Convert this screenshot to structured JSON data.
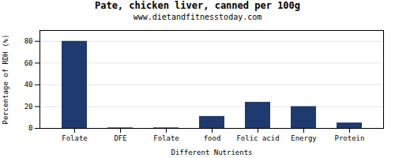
{
  "chart_data": {
    "type": "bar",
    "title": "Pate, chicken liver, canned per 100g",
    "subtitle": "www.dietandfitnesstoday.com",
    "xlabel": "Different Nutrients",
    "ylabel": "Percentage of RDH (%)",
    "categories": [
      "Folate",
      "DFE",
      "Folate",
      "food",
      "Folic acid",
      "Energy",
      "Protein"
    ],
    "values": [
      80,
      0.5,
      0.5,
      11,
      24,
      20,
      5
    ],
    "color": "#1e3a6e",
    "ylim": [
      0,
      90
    ],
    "yticks": [
      0,
      20,
      40,
      60,
      80
    ],
    "grid": true
  }
}
